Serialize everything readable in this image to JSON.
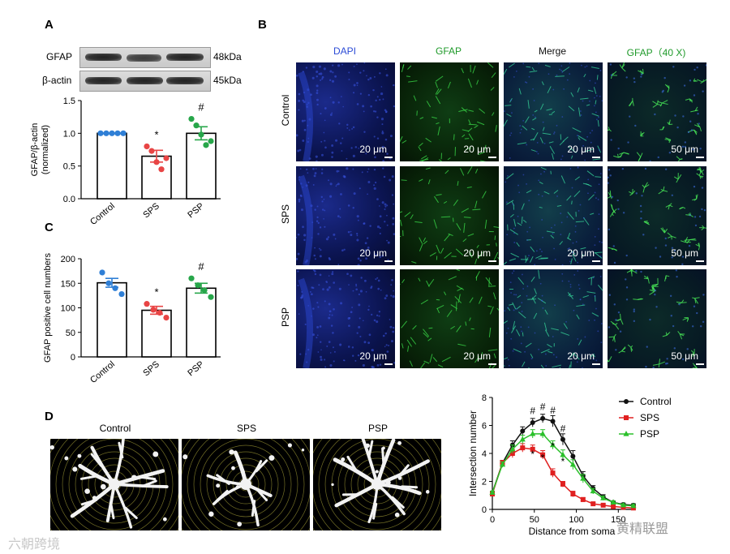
{
  "panels": {
    "a": "A",
    "b": "B",
    "c": "C",
    "d": "D"
  },
  "western_blot": {
    "rows": [
      {
        "label": "GFAP",
        "kda": "48kDa"
      },
      {
        "label": "β-actin",
        "kda": "45kDa"
      }
    ]
  },
  "micrographs": {
    "columns": [
      "DAPI",
      "GFAP",
      "Merge",
      "GFAP（40 X)"
    ],
    "column_colors": [
      "#2b4bd6",
      "#1f9a2a",
      "#111111",
      "#1f9a2a"
    ],
    "rows": [
      "Control",
      "SPS",
      "PSP"
    ],
    "scale_bars": [
      "20 μm",
      "20 μm",
      "20 μm",
      "50 μm"
    ]
  },
  "astrocytes": {
    "labels": [
      "Control",
      "SPS",
      "PSP"
    ]
  },
  "watermark": {
    "left": "六朝跨境",
    "right": "黄精联盟"
  },
  "chart_data": [
    {
      "id": "A",
      "type": "bar",
      "categories": [
        "Control",
        "SPS",
        "PSP"
      ],
      "values": [
        1.0,
        0.65,
        1.0
      ],
      "errors": [
        0.0,
        0.09,
        0.1
      ],
      "points": [
        [
          1.0,
          1.0,
          1.0,
          1.0,
          1.0
        ],
        [
          0.8,
          0.73,
          0.56,
          0.45,
          0.62
        ],
        [
          1.22,
          1.12,
          0.98,
          0.82,
          0.88
        ]
      ],
      "point_colors": [
        "#2f7fd6",
        "#e84545",
        "#27a64a"
      ],
      "significance": [
        "",
        "*",
        "#"
      ],
      "ylabel": "GFAP/β-actin\n(normalized)",
      "ylim": [
        0,
        1.5
      ],
      "yticks": [
        "0.0",
        "0.5",
        "1.0",
        "1.5"
      ]
    },
    {
      "id": "C",
      "type": "bar",
      "categories": [
        "Control",
        "SPS",
        "PSP"
      ],
      "values": [
        151,
        95,
        140
      ],
      "errors": [
        9,
        8,
        10
      ],
      "points": [
        [
          172,
          150,
          140,
          128
        ],
        [
          108,
          96,
          90,
          80
        ],
        [
          160,
          146,
          136,
          122
        ]
      ],
      "point_colors": [
        "#2f7fd6",
        "#e84545",
        "#27a64a"
      ],
      "significance": [
        "",
        "*",
        "#"
      ],
      "ylabel": "GFAP positive cell numbers",
      "ylim": [
        0,
        200
      ],
      "yticks": [
        "0",
        "50",
        "100",
        "150",
        "200"
      ]
    },
    {
      "id": "D",
      "type": "line",
      "x": [
        0,
        12,
        24,
        36,
        48,
        60,
        72,
        84,
        96,
        108,
        120,
        132,
        144,
        156,
        168
      ],
      "series": [
        {
          "name": "Control",
          "color": "#111111",
          "marker": "circle",
          "values": [
            1.2,
            3.3,
            4.6,
            5.6,
            6.2,
            6.5,
            6.3,
            5.0,
            3.8,
            2.4,
            1.5,
            0.9,
            0.5,
            0.35,
            0.3
          ],
          "errors": [
            0.1,
            0.2,
            0.3,
            0.3,
            0.3,
            0.3,
            0.4,
            0.4,
            0.4,
            0.3,
            0.2,
            0.15,
            0.1,
            0.1,
            0.1
          ]
        },
        {
          "name": "SPS",
          "color": "#e02020",
          "marker": "square",
          "values": [
            1.1,
            3.3,
            4.0,
            4.4,
            4.3,
            3.9,
            2.6,
            1.8,
            1.1,
            0.7,
            0.4,
            0.3,
            0.2,
            0.15,
            0.1
          ],
          "errors": [
            0.1,
            0.2,
            0.3,
            0.3,
            0.3,
            0.3,
            0.3,
            0.2,
            0.2,
            0.15,
            0.1,
            0.1,
            0.05,
            0.05,
            0.05
          ]
        },
        {
          "name": "PSP",
          "color": "#2bc02b",
          "marker": "triangle",
          "values": [
            1.2,
            3.2,
            4.3,
            5.0,
            5.4,
            5.4,
            4.6,
            3.9,
            3.2,
            2.2,
            1.3,
            0.8,
            0.5,
            0.3,
            0.25
          ],
          "errors": [
            0.1,
            0.2,
            0.3,
            0.3,
            0.3,
            0.3,
            0.3,
            0.35,
            0.35,
            0.3,
            0.2,
            0.15,
            0.1,
            0.1,
            0.1
          ]
        }
      ],
      "annotations": [
        {
          "text": "#",
          "x": 48,
          "y": 6.8
        },
        {
          "text": "#",
          "x": 60,
          "y": 7.1
        },
        {
          "text": "#",
          "x": 72,
          "y": 6.85
        },
        {
          "text": "#",
          "x": 84,
          "y": 5.55
        },
        {
          "text": "*",
          "x": 48,
          "y": 3.7
        },
        {
          "text": "*",
          "x": 60,
          "y": 3.45
        },
        {
          "text": "*",
          "x": 72,
          "y": 4.3
        },
        {
          "text": "*",
          "x": 84,
          "y": 3.2
        }
      ],
      "xlabel": "Distance from soma",
      "ylabel": "Intersection number",
      "xlim": [
        0,
        170
      ],
      "ylim": [
        0,
        8
      ],
      "xticks": [
        "0",
        "50",
        "100",
        "150"
      ],
      "yticks": [
        "0",
        "2",
        "4",
        "6",
        "8"
      ],
      "legend": "top-right"
    }
  ]
}
